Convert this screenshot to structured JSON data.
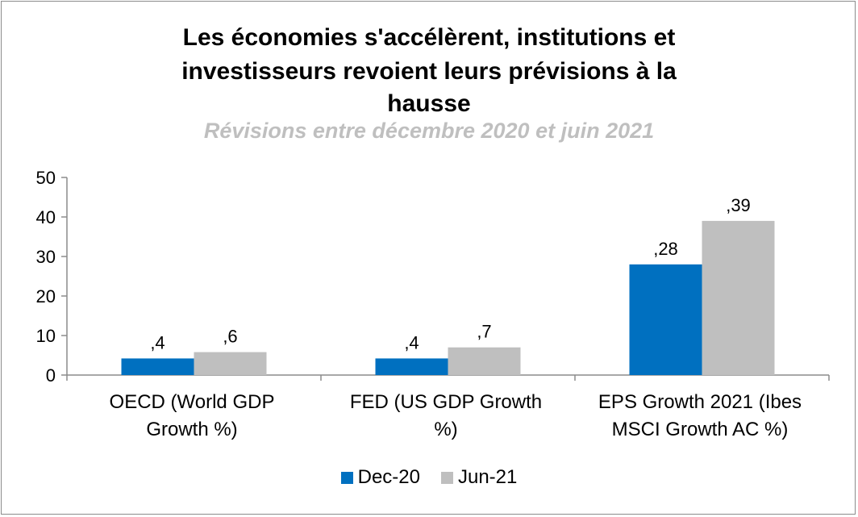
{
  "chart_data": {
    "type": "bar",
    "title_lines": [
      "Les économies s'accélèrent, institutions et",
      "investisseurs revoient leurs prévisions à la",
      "hausse"
    ],
    "subtitle": "Révisions entre décembre 2020 et juin 2021",
    "categories": [
      {
        "line1": "OECD (World GDP",
        "line2": "Growth %)"
      },
      {
        "line1": "FED (US GDP Growth",
        "line2": "%)"
      },
      {
        "line1": "EPS Growth 2021 (Ibes",
        "line2": "MSCI Growth AC %)"
      }
    ],
    "series": [
      {
        "name": "Dec-20",
        "color": "#0070c0",
        "values": [
          4.2,
          4.2,
          28
        ],
        "labels": [
          ",4",
          ",4",
          ",28"
        ]
      },
      {
        "name": "Jun-21",
        "color": "#bfbfbf",
        "values": [
          5.8,
          7,
          39
        ],
        "labels": [
          ",6",
          ",7",
          ",39"
        ]
      }
    ],
    "ylim": [
      0,
      50
    ],
    "yticks": [
      "0",
      "10",
      "20",
      "30",
      "40",
      "50"
    ],
    "grid": false,
    "legend_position": "bottom"
  }
}
